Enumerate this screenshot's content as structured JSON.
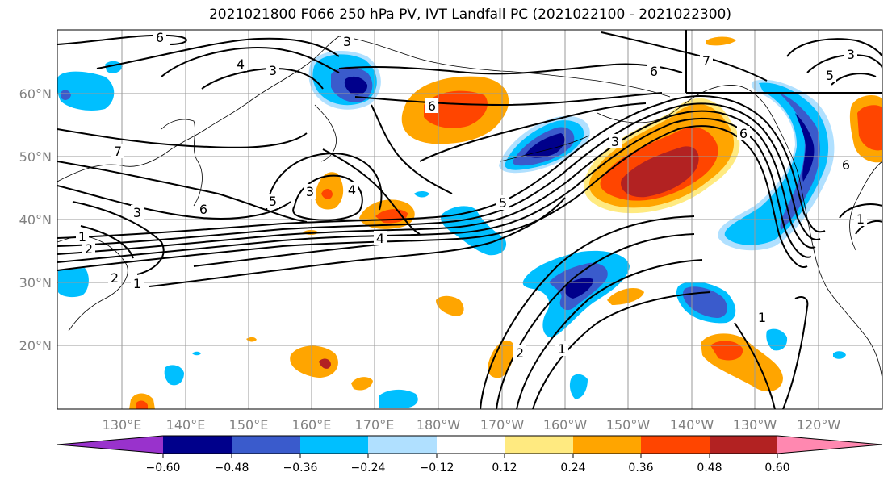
{
  "title": "2021021800 F066 250 hPa PV, IVT Landfall PC (2021022100 - 2021022300)",
  "map": {
    "lat_labels": [
      "60°N",
      "50°N",
      "40°N",
      "30°N",
      "20°N"
    ],
    "lon_labels": [
      "130°E",
      "140°E",
      "150°E",
      "160°E",
      "170°E",
      "180°W",
      "170°W",
      "160°W",
      "150°W",
      "140°W",
      "130°W",
      "120°W"
    ],
    "contour_labels": [
      "6",
      "3",
      "4",
      "3",
      "6",
      "7",
      "3",
      "6",
      "3",
      "6",
      "7",
      "5",
      "3",
      "4",
      "5",
      "6",
      "3",
      "1",
      "2",
      "2",
      "1",
      "4",
      "5",
      "2",
      "1",
      "1",
      "6",
      "1"
    ],
    "colors": {
      "ocean_bg": "#ffffff",
      "grid": "#9a9a9a",
      "contour": "#000000"
    }
  },
  "colorbar": {
    "ticks": [
      "−0.60",
      "−0.48",
      "−0.36",
      "−0.24",
      "−0.12",
      "0.12",
      "0.24",
      "0.36",
      "0.48",
      "0.60"
    ],
    "colors": [
      "#9932cc",
      "#00008b",
      "#3a5bcc",
      "#00bfff",
      "#b0e0ff",
      "#ffffff",
      "#ffea80",
      "#ffa500",
      "#ff4500",
      "#b22222",
      "#ff88b0"
    ]
  }
}
